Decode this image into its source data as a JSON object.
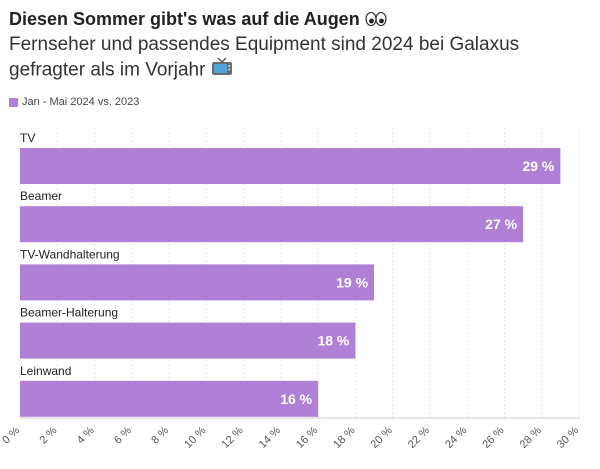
{
  "header": {
    "title": "Diesen Sommer gibt's was auf die Augen",
    "title_emoji": "eyes-emoji",
    "subtitle": "Fernseher und passendes Equipment sind 2024 bei Galaxus gefragter als im Vorjahr",
    "subtitle_emoji": "tv-emoji"
  },
  "colors": {
    "bar": "#b07fd6",
    "grid": "#e6e6e6",
    "label": "#222222",
    "value_text": "#ffffff"
  },
  "chart_data": {
    "type": "bar",
    "orientation": "horizontal",
    "categories": [
      "TV",
      "Beamer",
      "TV-Wandhalterung",
      "Beamer-Halterung",
      "Leinwand"
    ],
    "series": [
      {
        "name": "Jan - Mai 2024 vs. 2023",
        "values": [
          29,
          27,
          19,
          18,
          16
        ]
      }
    ],
    "value_labels": [
      "29 %",
      "27 %",
      "19 %",
      "18 %",
      "16 %"
    ],
    "xlim": [
      0,
      30
    ],
    "xticks": [
      0,
      2,
      4,
      6,
      8,
      10,
      12,
      14,
      16,
      18,
      20,
      22,
      24,
      26,
      28,
      30
    ],
    "xtick_labels": [
      "0 %",
      "2 %",
      "4 %",
      "6 %",
      "8 %",
      "10 %",
      "12 %",
      "14 %",
      "16 %",
      "18 %",
      "20 %",
      "22 %",
      "24 %",
      "26 %",
      "28 %",
      "30 %"
    ],
    "grid": true,
    "legend_position": "top-left"
  }
}
